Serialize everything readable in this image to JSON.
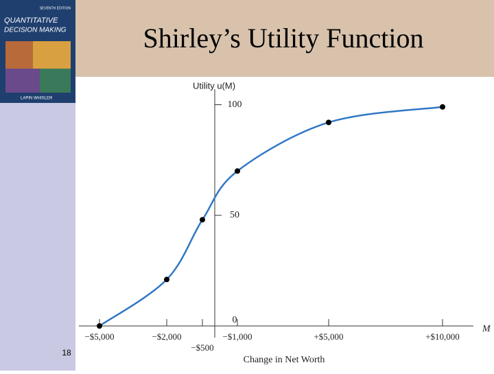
{
  "slide_number": "18",
  "cover": {
    "title": "QUANTITATIVE",
    "subtitle": "DECISION MAKING",
    "edition": "SEVENTH EDITION",
    "authors": "LAPIN  WHISLER"
  },
  "chart_data": {
    "type": "line",
    "title": "Shirley’s Utility Function",
    "y_label": "Utility u(M)",
    "x_label": "Change in Net Worth",
    "x_axis_symbol": "M",
    "categories": [
      "−$5,000",
      "−$2,000",
      "−$500",
      "−$1,000",
      "+$5,000",
      "+$10,000"
    ],
    "series": [
      {
        "name": "Utility",
        "color": "#2f78c4",
        "values": [
          0,
          21,
          48,
          70,
          92,
          99
        ]
      }
    ],
    "ylim": [
      0,
      107
    ],
    "yticks": [
      0,
      50,
      100
    ]
  }
}
